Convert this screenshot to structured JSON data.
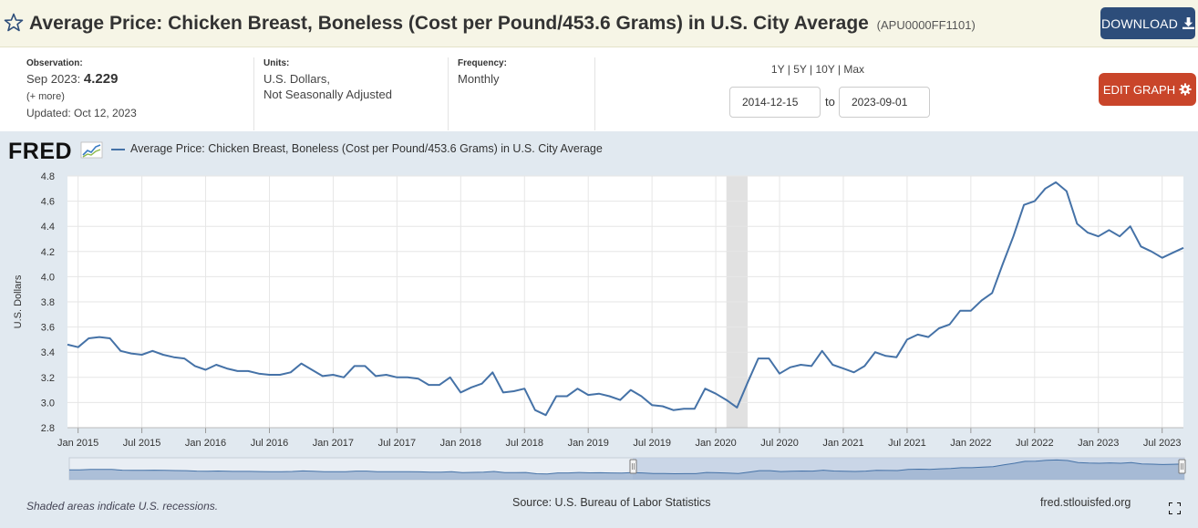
{
  "header": {
    "title": "Average Price: Chicken Breast, Boneless (Cost per Pound/453.6 Grams) in U.S. City Average",
    "series_id": "(APU0000FF1101)",
    "download_label": "DOWNLOAD",
    "star_icon": "star-outline-icon",
    "download_icon": "download-icon"
  },
  "info": {
    "observation_label": "Observation:",
    "observation_date": "Sep 2023:",
    "observation_value": "4.229",
    "more_link": "(+ more)",
    "updated": "Updated: Oct 12, 2023",
    "units_label": "Units:",
    "units_line1": "U.S. Dollars,",
    "units_line2": "Not Seasonally Adjusted",
    "frequency_label": "Frequency:",
    "frequency_value": "Monthly"
  },
  "range": {
    "links": [
      "1Y",
      "5Y",
      "10Y",
      "Max"
    ],
    "start_date": "2014-12-15",
    "to_label": "to",
    "end_date": "2023-09-01"
  },
  "edit_graph_label": "EDIT GRAPH",
  "logo_text": "FRED",
  "footer": {
    "recession_note": "Shaded areas indicate U.S. recessions.",
    "source": "Source: U.S. Bureau of Labor Statistics",
    "site": "fred.stlouisfed.org"
  },
  "colors": {
    "line": "#4572a7",
    "recession": "#e1e1e1",
    "header_bg": "#f6f5e6",
    "download_btn": "#2d4d7a",
    "edit_btn": "#c9452a",
    "graph_bg": "#e1e9f0"
  },
  "chart_data": {
    "type": "line",
    "title": "",
    "ylabel": "U.S. Dollars",
    "xlabel": "",
    "ylim": [
      2.8,
      4.8
    ],
    "yticks": [
      "2.8",
      "3.0",
      "3.2",
      "3.4",
      "3.6",
      "3.8",
      "4.0",
      "4.2",
      "4.4",
      "4.6",
      "4.8"
    ],
    "xticks": [
      "Jan 2015",
      "Jul 2015",
      "Jan 2016",
      "Jul 2016",
      "Jan 2017",
      "Jul 2017",
      "Jan 2018",
      "Jul 2018",
      "Jan 2019",
      "Jul 2019",
      "Jan 2020",
      "Jul 2020",
      "Jan 2021",
      "Jul 2021",
      "Jan 2022",
      "Jul 2022",
      "Jan 2023",
      "Jul 2023"
    ],
    "x_start": "2014-12",
    "x_end": "2023-09",
    "grid": true,
    "legend": "top-left",
    "recessions": [
      {
        "start": "2020-02",
        "end": "2020-04"
      }
    ],
    "series": [
      {
        "name": "Average Price: Chicken Breast, Boneless (Cost per Pound/453.6 Grams) in U.S. City Average",
        "values": [
          3.46,
          3.44,
          3.51,
          3.52,
          3.51,
          3.41,
          3.39,
          3.38,
          3.41,
          3.38,
          3.36,
          3.35,
          3.29,
          3.26,
          3.3,
          3.27,
          3.25,
          3.25,
          3.23,
          3.22,
          3.22,
          3.24,
          3.31,
          3.26,
          3.21,
          3.22,
          3.2,
          3.29,
          3.29,
          3.21,
          3.22,
          3.2,
          3.2,
          3.19,
          3.14,
          3.14,
          3.2,
          3.08,
          3.12,
          3.15,
          3.24,
          3.08,
          3.09,
          3.11,
          2.94,
          2.9,
          3.05,
          3.05,
          3.11,
          3.06,
          3.07,
          3.05,
          3.02,
          3.1,
          3.05,
          2.98,
          2.97,
          2.94,
          2.95,
          2.95,
          3.11,
          3.07,
          3.02,
          2.96,
          3.16,
          3.35,
          3.35,
          3.23,
          3.28,
          3.3,
          3.29,
          3.41,
          3.3,
          3.27,
          3.24,
          3.29,
          3.4,
          3.37,
          3.36,
          3.5,
          3.54,
          3.52,
          3.59,
          3.62,
          3.73,
          3.73,
          3.81,
          3.87,
          4.1,
          4.32,
          4.57,
          4.6,
          4.7,
          4.75,
          4.68,
          4.42,
          4.35,
          4.32,
          4.37,
          4.32,
          4.4,
          4.24,
          4.2,
          4.15,
          4.19,
          4.229
        ]
      }
    ]
  }
}
